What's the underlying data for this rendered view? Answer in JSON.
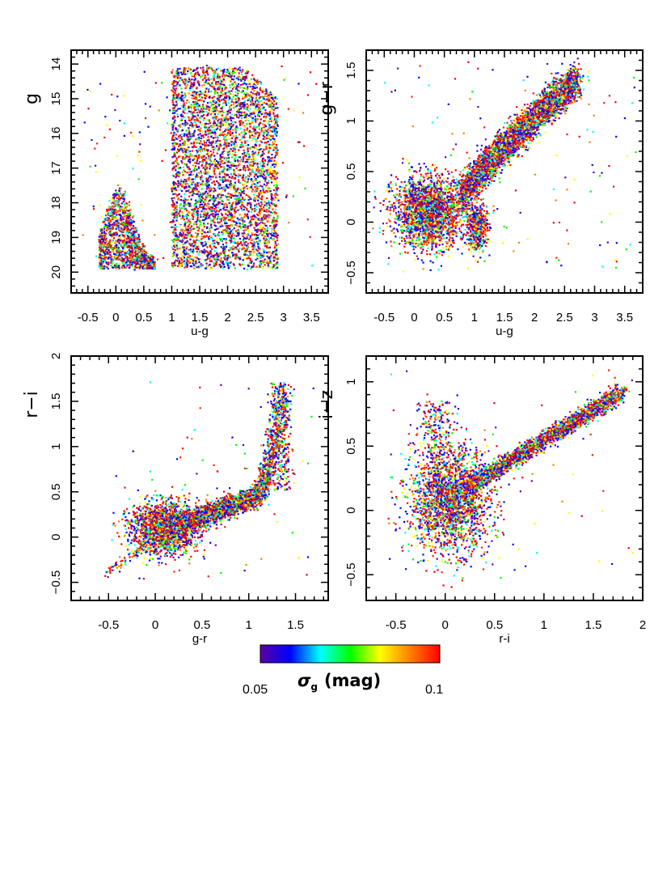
{
  "chart_data": [
    {
      "id": "panel-g-vs-ug",
      "type": "scatter",
      "title": "",
      "xlabel": "u-g",
      "ylabel": "g",
      "xlim": [
        -0.8,
        3.8
      ],
      "ylim": [
        20.6,
        13.6
      ],
      "y_inverted": true,
      "xticks": [
        -0.5,
        0,
        0.5,
        1,
        1.5,
        2,
        2.5,
        3,
        3.5
      ],
      "xtick_labels": [
        "-0.5",
        "0",
        "0.5",
        "1",
        "1.5",
        "2",
        "2.5",
        "3",
        "3.5"
      ],
      "yticks": [
        14,
        15,
        16,
        17,
        18,
        19,
        20
      ],
      "ytick_labels": [
        "14",
        "15",
        "16",
        "17",
        "18",
        "19",
        "20"
      ],
      "point_groups": [
        {
          "name": "blue-ug-branch",
          "x_range": [
            -0.3,
            0.8
          ],
          "y_range": [
            18.2,
            19.9
          ],
          "density": "high"
        },
        {
          "name": "red-ug-branch",
          "x_range": [
            1.0,
            2.9
          ],
          "y_range": [
            14.1,
            19.9
          ],
          "density": "high"
        }
      ],
      "color_encoding": "sigma_g"
    },
    {
      "id": "panel-gr-vs-ug",
      "type": "scatter",
      "title": "",
      "xlabel": "u-g",
      "ylabel": "g−r",
      "xlim": [
        -0.8,
        3.8
      ],
      "ylim": [
        -0.7,
        1.7
      ],
      "xticks": [
        -0.5,
        0,
        0.5,
        1,
        1.5,
        2,
        2.5,
        3,
        3.5
      ],
      "xtick_labels": [
        "-0.5",
        "0",
        "0.5",
        "1",
        "1.5",
        "2",
        "2.5",
        "3",
        "3.5"
      ],
      "yticks": [
        -0.5,
        0,
        0.5,
        1,
        1.5
      ],
      "ytick_labels": [
        "−0.5",
        "0",
        "0.5",
        "1",
        "1.5"
      ],
      "point_groups": [
        {
          "name": "quasar-clump",
          "center": [
            0.25,
            0.1
          ],
          "spread": [
            0.35,
            0.22
          ]
        },
        {
          "name": "stellar-locus",
          "from": [
            0.8,
            0.25
          ],
          "to": [
            2.6,
            1.35
          ]
        }
      ],
      "color_encoding": "sigma_g"
    },
    {
      "id": "panel-ri-vs-gr",
      "type": "scatter",
      "title": "",
      "xlabel": "g-r",
      "ylabel": "r−i",
      "xlim": [
        -0.9,
        1.85
      ],
      "ylim": [
        -0.7,
        2.0
      ],
      "xticks": [
        -0.5,
        0,
        0.5,
        1,
        1.5
      ],
      "xtick_labels": [
        "-0.5",
        "0",
        "0.5",
        "1",
        "1.5"
      ],
      "yticks": [
        -0.5,
        0,
        0.5,
        1,
        1.5,
        2
      ],
      "ytick_labels": [
        "−0.5",
        "0",
        "0.5",
        "1",
        "1.5",
        "2"
      ],
      "point_groups": [
        {
          "name": "quasar-clump",
          "center": [
            0.1,
            0.1
          ],
          "spread": [
            0.22,
            0.2
          ]
        },
        {
          "name": "stellar-locus",
          "from": [
            0.2,
            0.1
          ],
          "to": [
            1.5,
            1.7
          ]
        }
      ],
      "color_encoding": "sigma_g"
    },
    {
      "id": "panel-iz-vs-ri",
      "type": "scatter",
      "title": "",
      "xlabel": "r-i",
      "ylabel": "i−z",
      "xlim": [
        -0.8,
        2.0
      ],
      "ylim": [
        -0.7,
        1.2
      ],
      "xticks": [
        -0.5,
        0,
        0.5,
        1,
        1.5,
        2
      ],
      "xtick_labels": [
        "-0.5",
        "0",
        "0.5",
        "1",
        "1.5",
        "2"
      ],
      "yticks": [
        -0.5,
        0,
        0.5,
        1
      ],
      "ytick_labels": [
        "−0.5",
        "0",
        "0.5",
        "1"
      ],
      "point_groups": [
        {
          "name": "quasar-clump",
          "center": [
            0.05,
            0.1
          ],
          "spread": [
            0.22,
            0.25
          ]
        },
        {
          "name": "stellar-locus",
          "from": [
            0.3,
            0.2
          ],
          "to": [
            1.8,
            1.0
          ]
        }
      ],
      "color_encoding": "sigma_g"
    }
  ],
  "colorbar": {
    "label_symbol": "σ",
    "label_subscript": "g",
    "label_unit": "(mag)",
    "min_label": "0.05",
    "max_label": "0.1",
    "range": [
      0.05,
      0.1
    ],
    "stops": [
      "#5a00a0",
      "#0000ff",
      "#00ffff",
      "#00ff00",
      "#ffff00",
      "#ff8000",
      "#ff0000"
    ]
  },
  "colors": {
    "axis": "#000000",
    "background": "#ffffff",
    "point_palette": [
      "#ff0000",
      "#ff0000",
      "#ff2000",
      "#0000ff",
      "#0010ff",
      "#00ffff",
      "#00ff00",
      "#ffff00",
      "#ff8000",
      "#6000c0"
    ]
  }
}
